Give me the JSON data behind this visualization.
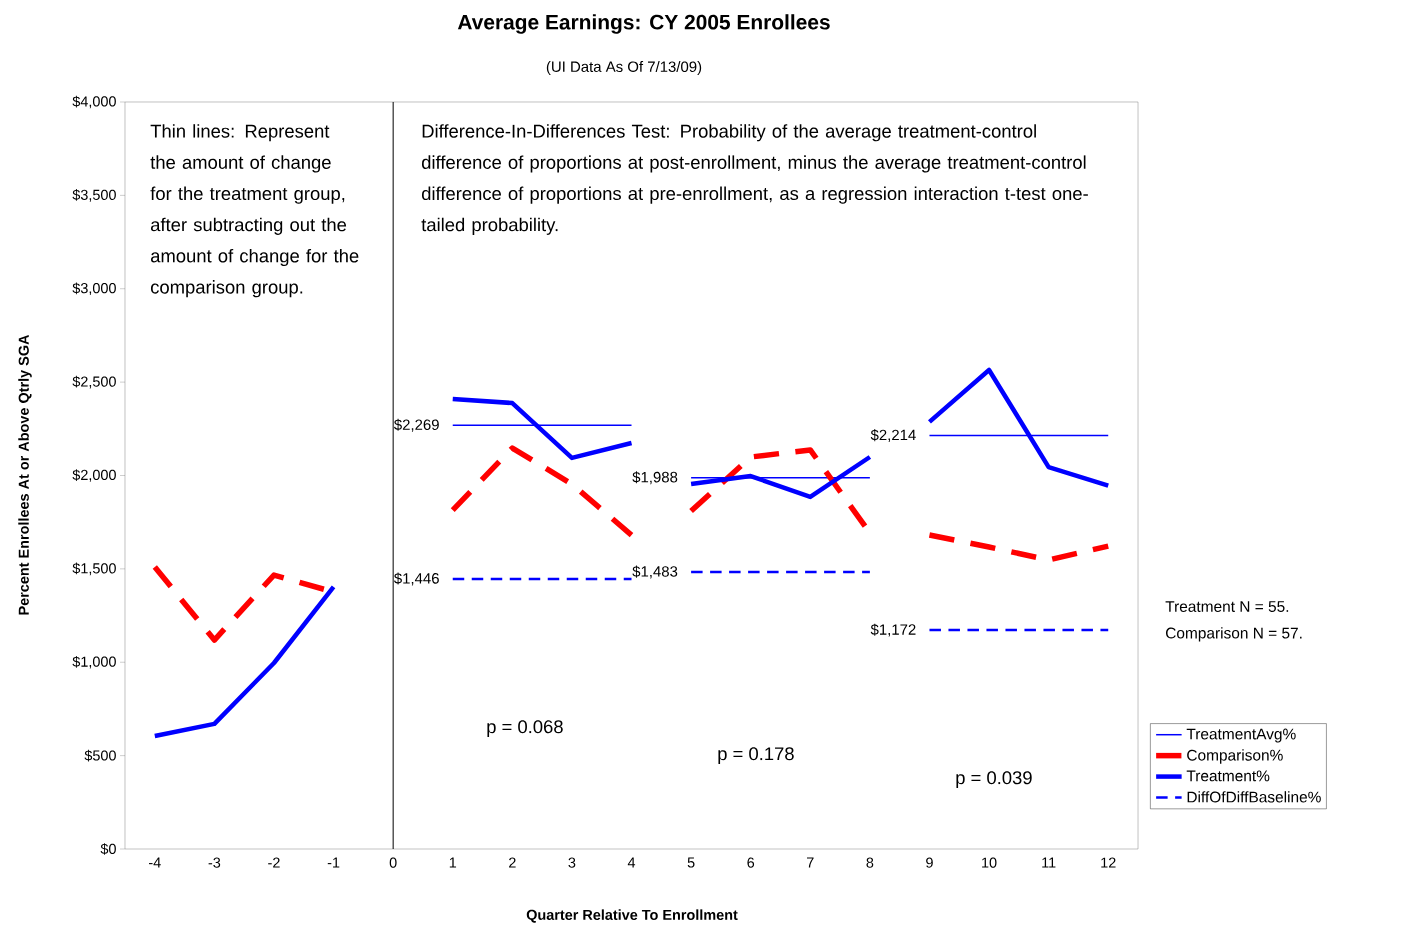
{
  "chart_data": {
    "type": "line",
    "title": "Average Earnings:  CY 2005 Enrollees",
    "subtitle": "(UI Data As Of 7/13/09)",
    "xlabel": "Quarter Relative To Enrollment",
    "ylabel": "Percent Enrollees At or Above Qtrly SGA",
    "xlim": [
      -4.5,
      12.5
    ],
    "xticks": [
      -4,
      -3,
      -2,
      -1,
      0,
      1,
      2,
      3,
      4,
      5,
      6,
      7,
      8,
      9,
      10,
      11,
      12
    ],
    "ylim": [
      0,
      4000
    ],
    "yticks": [
      {
        "value": 0,
        "label": "$0"
      },
      {
        "value": 500,
        "label": "$500"
      },
      {
        "value": 1000,
        "label": "$1,000"
      },
      {
        "value": 1500,
        "label": "$1,500"
      },
      {
        "value": 2000,
        "label": "$2,000"
      },
      {
        "value": 2500,
        "label": "$2,500"
      },
      {
        "value": 3000,
        "label": "$3,000"
      },
      {
        "value": 3500,
        "label": "$3,500"
      },
      {
        "value": 4000,
        "label": "$4,000"
      }
    ],
    "grid": false,
    "legend": "right",
    "marker": "none",
    "series": [
      {
        "name": "TreatmentAvg%",
        "color": "#0000ff",
        "line_style": "solid",
        "x": [
          1,
          4,
          4.5,
          5,
          8,
          8.5,
          9,
          12
        ],
        "values": [
          2269,
          2269,
          null,
          1988,
          1988,
          null,
          2214,
          2214
        ],
        "value_labels": [
          "$2,269",
          null,
          null,
          "$1,988",
          null,
          null,
          "$2,214",
          null
        ]
      },
      {
        "name": "Comparison%",
        "color": "#ff0000",
        "line_style": "dashed",
        "x": [
          -4,
          -3,
          -2,
          -1,
          0,
          1,
          2,
          3,
          4,
          4.5,
          5,
          6,
          7,
          8,
          8.5,
          9,
          10,
          11,
          12
        ],
        "values": [
          1510,
          1119,
          1467,
          1376,
          null,
          1815,
          2147,
          1954,
          1681,
          null,
          1810,
          2099,
          2137,
          1692,
          null,
          1681,
          1617,
          1548,
          1622
        ]
      },
      {
        "name": "Treatment%",
        "color": "#0000ff",
        "line_style": "solid",
        "x": [
          -4,
          -3,
          -2,
          -1,
          0,
          1,
          2,
          3,
          4,
          4.5,
          5,
          6,
          7,
          8,
          8.5,
          9,
          10,
          11,
          12
        ],
        "values": [
          605,
          670,
          996,
          1403,
          null,
          2410,
          2388,
          2094,
          2174,
          null,
          1954,
          1997,
          1885,
          2099,
          null,
          2287,
          2565,
          2045,
          1946
        ]
      },
      {
        "name": "DiffOfDiffBaseline%",
        "color": "#0000ff",
        "line_style": "dashed",
        "x": [
          1,
          4,
          4.5,
          5,
          8,
          8.5,
          9,
          12
        ],
        "values": [
          1446,
          1446,
          null,
          1483,
          1483,
          null,
          1172,
          1172
        ],
        "value_labels": [
          "$1,446",
          null,
          null,
          "$1,483",
          null,
          null,
          "$1,172",
          null
        ]
      }
    ],
    "ref_lines": [
      {
        "axis": "x",
        "value": 0,
        "color": "#000000"
      }
    ],
    "annotations": [
      "Thin lines: Represent the amount of change for the treatment group, after subtracting out the amount of change for the comparison group.",
      "Difference-In-Differences Test: Probability of the average treatment-control difference of proportions at post-enrollment, minus the average treatment-control difference of proportions at pre-enrollment, as a regression interaction t-test one-tailed probability.",
      "p = 0.068",
      "p = 0.178",
      "p = 0.039",
      "Treatment N = 55.",
      "Comparison N = 57."
    ]
  }
}
